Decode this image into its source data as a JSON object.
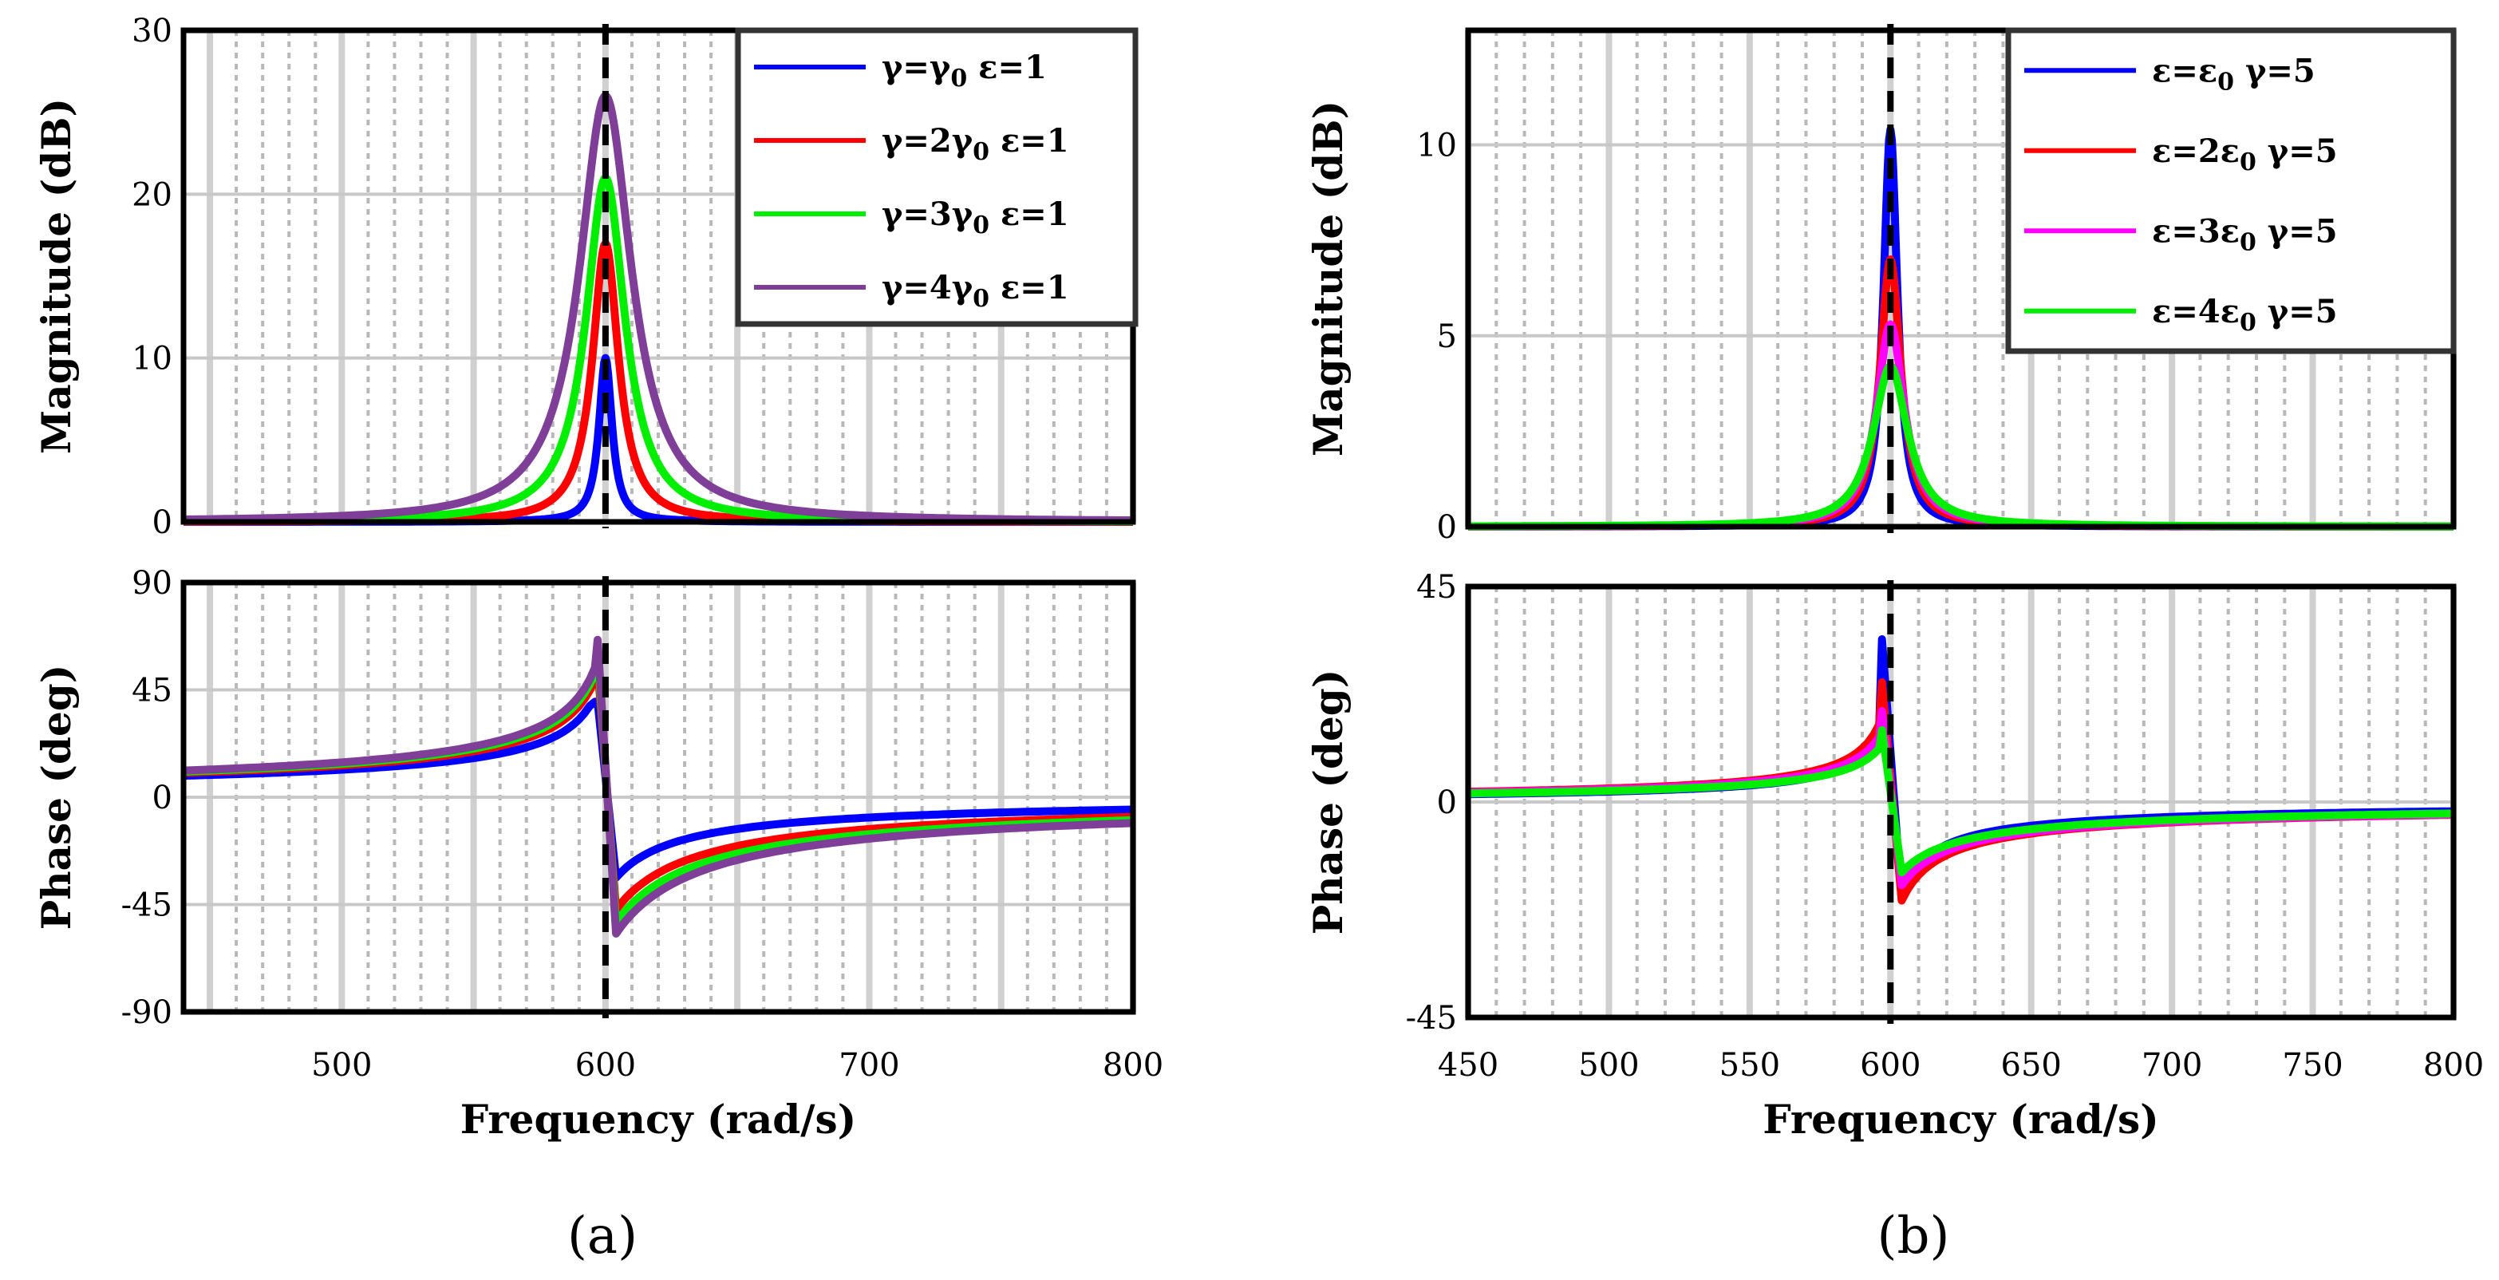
{
  "chart_data": [
    {
      "id": "a",
      "caption": "(a)",
      "type": "line",
      "title": "",
      "x_range": [
        440,
        800
      ],
      "xlabel": "Frequency  (rad/s)",
      "x_ticks": [
        500,
        600,
        700,
        800
      ],
      "resonance_marker_x": 600,
      "series": [
        {
          "name": "γ=γ0 ε=1",
          "label_parts": [
            "γ=γ",
            "0",
            " ε=1"
          ],
          "color": "#0000ff",
          "mag_peak_db": 10,
          "mag_width": 3,
          "phase_peak": 40
        },
        {
          "name": "γ=2γ0 ε=1",
          "label_parts": [
            "γ=2γ",
            "0",
            " ε=1"
          ],
          "color": "#ff0000",
          "mag_peak_db": 17,
          "mag_width": 6,
          "phase_peak": 55
        },
        {
          "name": "γ=3γ0 ε=1",
          "label_parts": [
            "γ=3γ",
            "0",
            " ε=1"
          ],
          "color": "#00ee00",
          "mag_peak_db": 21,
          "mag_width": 9,
          "phase_peak": 61
        },
        {
          "name": "γ=4γ0 ε=1",
          "label_parts": [
            "γ=4γ",
            "0",
            " ε=1"
          ],
          "color": "#7f3f98",
          "mag_peak_db": 26,
          "mag_width": 12,
          "phase_peak": 66
        }
      ],
      "magnitude": {
        "ylabel": "Magnitude (dB)",
        "ylim": [
          0,
          30
        ],
        "y_ticks": [
          0,
          10,
          20,
          30
        ],
        "y_tick_labels": [
          "0",
          "10",
          "20",
          "30"
        ]
      },
      "phase": {
        "ylabel": "Phase (deg)",
        "ylim": [
          -90,
          90
        ],
        "y_ticks": [
          -90,
          -45,
          0,
          45,
          90
        ],
        "y_tick_labels": [
          "-90",
          "-45",
          "0",
          "45",
          "90"
        ]
      },
      "legend_location": "top-right"
    },
    {
      "id": "b",
      "caption": "(b)",
      "type": "line",
      "title": "",
      "x_range": [
        450,
        800
      ],
      "xlabel": "Frequency  (rad/s)",
      "x_ticks": [
        450,
        500,
        550,
        600,
        650,
        700,
        750,
        800
      ],
      "resonance_marker_x": 600,
      "series": [
        {
          "name": "ε=ε0 γ=5",
          "label_parts": [
            "ε=ε",
            "0",
            " γ=5"
          ],
          "color": "#0000ff",
          "mag_peak_db": 10.4,
          "mag_width": 3,
          "phase_peak": 34
        },
        {
          "name": "ε=2ε0 γ=5",
          "label_parts": [
            "ε=2ε",
            "0",
            " γ=5"
          ],
          "color": "#ff0000",
          "mag_peak_db": 7,
          "mag_width": 4.5,
          "phase_peak": 25
        },
        {
          "name": "ε=3ε0 γ=5",
          "label_parts": [
            "ε=3ε",
            "0",
            " γ=5"
          ],
          "color": "#ff00ff",
          "mag_peak_db": 5.3,
          "mag_width": 6,
          "phase_peak": 19
        },
        {
          "name": "ε=4ε0 γ=5",
          "label_parts": [
            "ε=4ε",
            "0",
            " γ=5"
          ],
          "color": "#00ee00",
          "mag_peak_db": 4.2,
          "mag_width": 7.5,
          "phase_peak": 15
        }
      ],
      "magnitude": {
        "ylabel": "Magnitude (dB)",
        "ylim": [
          0,
          13
        ],
        "y_ticks": [
          0,
          5,
          10
        ],
        "y_tick_labels": [
          "0",
          "5",
          "10"
        ]
      },
      "phase": {
        "ylabel": "Phase (deg)",
        "ylim": [
          -45,
          45
        ],
        "y_ticks": [
          -45,
          0,
          45
        ],
        "y_tick_labels": [
          "-45",
          "0",
          "45"
        ]
      },
      "legend_location": "top-right"
    }
  ]
}
